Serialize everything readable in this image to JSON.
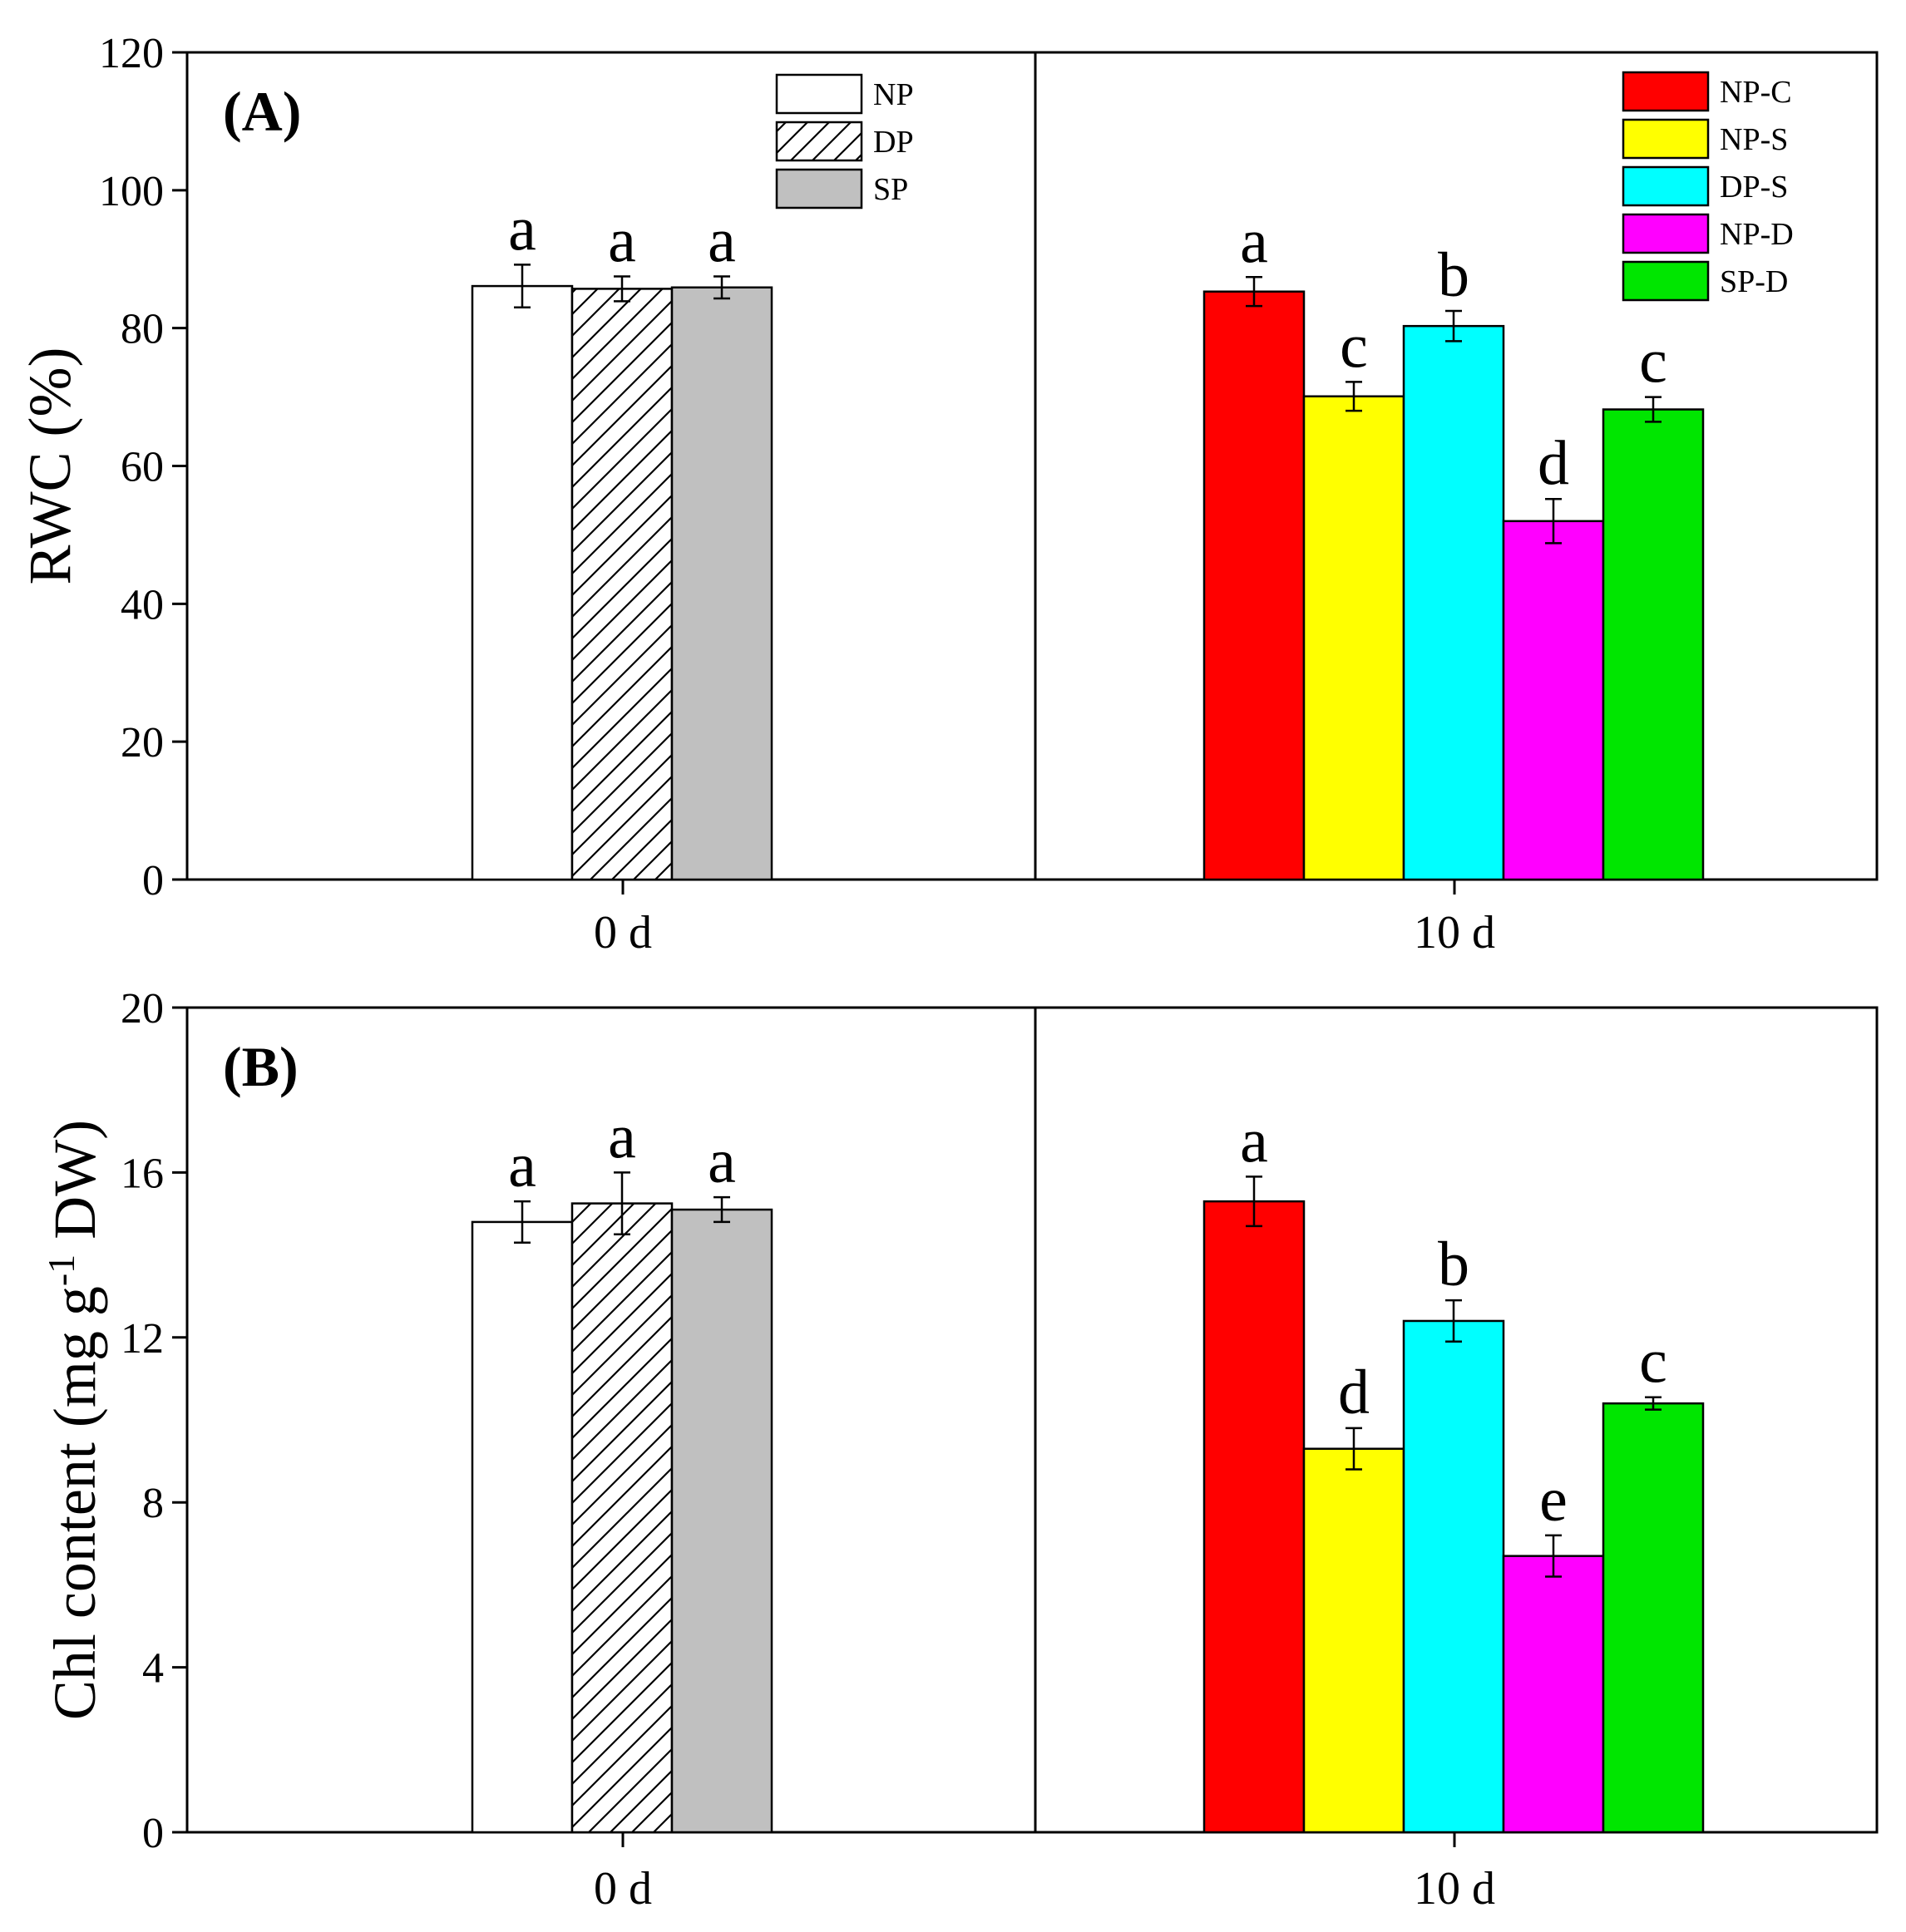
{
  "colors": {
    "NP": "#ffffff",
    "DP": "hatch",
    "SP": "#c0c0c0",
    "NP-C": "#ff0000",
    "NP-S": "#ffff00",
    "DP-S": "#00ffff",
    "NP-D": "#ff00ff",
    "SP-D": "#00e600"
  },
  "chart_data": [
    {
      "type": "bar",
      "panel_label": "(A)",
      "ylabel": "RWC (%)",
      "ylim": [
        0,
        120
      ],
      "yticks": [
        "0",
        "20",
        "40",
        "60",
        "80",
        "100",
        "120"
      ],
      "ytick_values": [
        0,
        20,
        40,
        60,
        80,
        100,
        120
      ],
      "groups": [
        {
          "category": "0 d",
          "legend": [
            "NP",
            "DP",
            "SP"
          ],
          "bars": [
            {
              "series": "NP",
              "value": 86.1,
              "error": 3.1,
              "letter": "a"
            },
            {
              "series": "DP",
              "value": 85.7,
              "error": 1.8,
              "letter": "a"
            },
            {
              "series": "SP",
              "value": 85.9,
              "error": 1.6,
              "letter": "a"
            }
          ]
        },
        {
          "category": "10 d",
          "legend": [
            "NP-C",
            "NP-S",
            "DP-S",
            "NP-D",
            "SP-D"
          ],
          "bars": [
            {
              "series": "NP-C",
              "value": 85.3,
              "error": 2.1,
              "letter": "a"
            },
            {
              "series": "NP-S",
              "value": 70.1,
              "error": 2.1,
              "letter": "c"
            },
            {
              "series": "DP-S",
              "value": 80.3,
              "error": 2.2,
              "letter": "b"
            },
            {
              "series": "NP-D",
              "value": 52.0,
              "error": 3.2,
              "letter": "d"
            },
            {
              "series": "SP-D",
              "value": 68.2,
              "error": 1.8,
              "letter": "c"
            }
          ]
        }
      ]
    },
    {
      "type": "bar",
      "panel_label": "(B)",
      "ylabel_main": "Chl content (mg g",
      "ylabel_sup": "-1",
      "ylabel_end": " DW)",
      "ylim": [
        0,
        20
      ],
      "yticks": [
        "0",
        "4",
        "8",
        "12",
        "16",
        "20"
      ],
      "ytick_values": [
        0,
        4,
        8,
        12,
        16,
        20
      ],
      "groups": [
        {
          "category": "0 d",
          "legend": [],
          "bars": [
            {
              "series": "NP",
              "value": 14.8,
              "error": 0.5,
              "letter": "a"
            },
            {
              "series": "DP",
              "value": 15.25,
              "error": 0.75,
              "letter": "a"
            },
            {
              "series": "SP",
              "value": 15.1,
              "error": 0.3,
              "letter": "a"
            }
          ]
        },
        {
          "category": "10 d",
          "legend": [],
          "bars": [
            {
              "series": "NP-C",
              "value": 15.3,
              "error": 0.6,
              "letter": "a"
            },
            {
              "series": "NP-S",
              "value": 9.3,
              "error": 0.5,
              "letter": "d"
            },
            {
              "series": "DP-S",
              "value": 12.4,
              "error": 0.5,
              "letter": "b"
            },
            {
              "series": "NP-D",
              "value": 6.7,
              "error": 0.5,
              "letter": "e"
            },
            {
              "series": "SP-D",
              "value": 10.4,
              "error": 0.15,
              "letter": "c"
            }
          ]
        }
      ]
    }
  ]
}
